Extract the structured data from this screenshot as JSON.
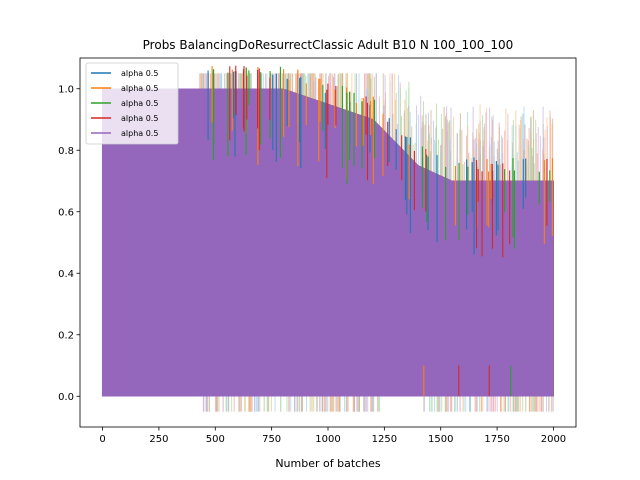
{
  "chart_data": {
    "type": "line",
    "title": "Probs BalancingDoResurrectClassic Adult B10 N 100_100_100",
    "xlabel": "Number of batches",
    "ylabel": "",
    "xlim": [
      -100,
      2100
    ],
    "ylim": [
      -0.1,
      1.1
    ],
    "xticks": [
      0,
      250,
      500,
      750,
      1000,
      1250,
      1500,
      1750,
      2000
    ],
    "yticks": [
      0.0,
      0.2,
      0.4,
      0.6,
      0.8,
      1.0
    ],
    "xtick_labels": [
      "0",
      "250",
      "500",
      "750",
      "1000",
      "1250",
      "1500",
      "1750",
      "2000"
    ],
    "ytick_labels": [
      "0.0",
      "0.2",
      "0.4",
      "0.6",
      "0.8",
      "1.0"
    ],
    "legend_position": "upper-left",
    "grid": false,
    "x_max": 2000,
    "series": [
      {
        "name": "alpha 0.5",
        "color": "#1f77b4",
        "upper_envelope": [
          [
            0,
            1.0
          ],
          [
            800,
            1.0
          ],
          [
            1200,
            0.9
          ],
          [
            1400,
            0.75
          ],
          [
            1550,
            0.7
          ],
          [
            2000,
            0.7
          ]
        ],
        "lower_envelope": [
          [
            0,
            0.0
          ],
          [
            2000,
            0.0
          ]
        ]
      },
      {
        "name": "alpha 0.5",
        "color": "#ff7f0e",
        "upper_envelope": [
          [
            0,
            1.0
          ],
          [
            800,
            1.0
          ],
          [
            1200,
            0.9
          ],
          [
            1400,
            0.75
          ],
          [
            1550,
            0.7
          ],
          [
            2000,
            0.7
          ]
        ],
        "lower_envelope": [
          [
            0,
            0.0
          ],
          [
            2000,
            0.0
          ]
        ]
      },
      {
        "name": "alpha 0.5",
        "color": "#2ca02c",
        "upper_envelope": [
          [
            0,
            1.0
          ],
          [
            800,
            1.0
          ],
          [
            1200,
            0.9
          ],
          [
            1400,
            0.75
          ],
          [
            1550,
            0.7
          ],
          [
            2000,
            0.7
          ]
        ],
        "lower_envelope": [
          [
            0,
            0.0
          ],
          [
            2000,
            0.0
          ]
        ]
      },
      {
        "name": "alpha 0.5",
        "color": "#d62728",
        "upper_envelope": [
          [
            0,
            1.0
          ],
          [
            800,
            1.0
          ],
          [
            1200,
            0.9
          ],
          [
            1400,
            0.75
          ],
          [
            1550,
            0.7
          ],
          [
            2000,
            0.7
          ]
        ],
        "lower_envelope": [
          [
            0,
            0.0
          ],
          [
            2000,
            0.0
          ]
        ]
      },
      {
        "name": "alpha 0.5",
        "color": "#9467bd",
        "upper_envelope": [
          [
            0,
            1.0
          ],
          [
            800,
            1.0
          ],
          [
            1200,
            0.9
          ],
          [
            1400,
            0.75
          ],
          [
            1550,
            0.7
          ],
          [
            2000,
            0.7
          ]
        ],
        "lower_envelope": [
          [
            0,
            0.0
          ],
          [
            2000,
            0.0
          ]
        ]
      }
    ]
  }
}
